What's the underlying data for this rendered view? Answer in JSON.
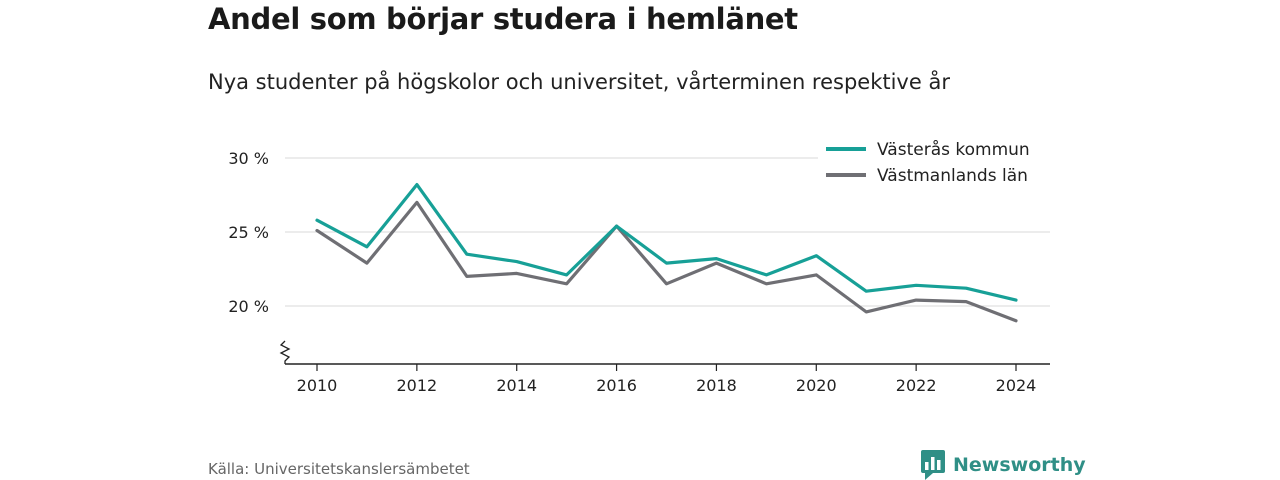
{
  "header": {
    "title": "Andel som börjar studera i hemlänet",
    "subtitle": "Nya studenter på högskolor och universitet, vårterminen respektive år"
  },
  "footer": {
    "source": "Källa: Universitetskanslersämbetet",
    "brand": "Newsworthy",
    "brand_icon": "bar-chart-speech-icon",
    "brand_color": "#2f8f86"
  },
  "chart_data": {
    "type": "line",
    "x": [
      2010,
      2011,
      2012,
      2013,
      2014,
      2015,
      2016,
      2017,
      2018,
      2019,
      2020,
      2021,
      2022,
      2023,
      2024
    ],
    "series": [
      {
        "name": "Västerås kommun",
        "color": "#17a097",
        "values": [
          25.8,
          24.0,
          28.2,
          23.5,
          23.0,
          22.1,
          25.4,
          22.9,
          23.2,
          22.1,
          23.4,
          21.0,
          21.4,
          21.2,
          20.4
        ]
      },
      {
        "name": "Västmanlands län",
        "color": "#6f6f74",
        "values": [
          25.1,
          22.9,
          27.0,
          22.0,
          22.2,
          21.5,
          25.4,
          21.5,
          22.9,
          21.5,
          22.1,
          19.6,
          20.4,
          20.3,
          19.0
        ]
      }
    ],
    "yticks": [
      20,
      25,
      30
    ],
    "ytick_labels": [
      "20 %",
      "25 %",
      "30 %"
    ],
    "xticks": [
      2010,
      2012,
      2014,
      2016,
      2018,
      2020,
      2022,
      2024
    ],
    "xtick_labels": [
      "2010",
      "2012",
      "2014",
      "2016",
      "2018",
      "2020",
      "2022",
      "2024"
    ],
    "ylim": [
      16,
      30
    ],
    "y_axis_break": true,
    "grid": "horizontal",
    "legend": "top-right"
  }
}
